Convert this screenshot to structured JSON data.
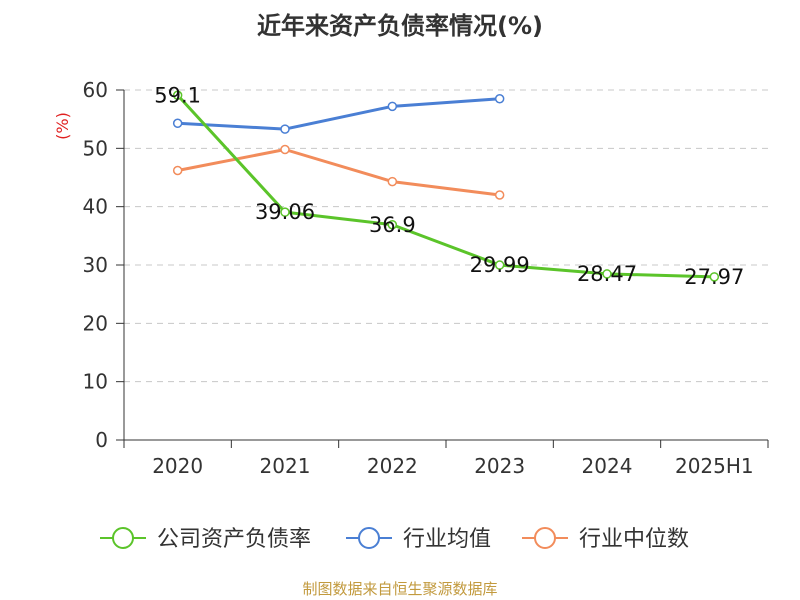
{
  "title": "近年来资产负债率情况(%)",
  "footer": "制图数据来自恒生聚源数据库",
  "chart_data": {
    "type": "line",
    "categories": [
      "2020",
      "2021",
      "2022",
      "2023",
      "2024",
      "2025H1"
    ],
    "ylabel": "(%)",
    "ylim": [
      0,
      60
    ],
    "yticks": [
      0,
      10,
      20,
      30,
      40,
      50,
      60
    ],
    "grid": true,
    "legend_position": "bottom",
    "series": [
      {
        "name": "公司资产负债率",
        "color": "#5bc42a",
        "values": [
          59.1,
          39.06,
          36.9,
          29.99,
          28.47,
          27.97
        ],
        "labels": [
          "59.1",
          "39.06",
          "36.9",
          "29.99",
          "28.47",
          "27.97"
        ]
      },
      {
        "name": "行业均值",
        "color": "#4a7fd4",
        "values": [
          54.3,
          53.3,
          57.2,
          58.5,
          null,
          null
        ]
      },
      {
        "name": "行业中位数",
        "color": "#f28c5b",
        "values": [
          46.2,
          49.8,
          44.3,
          42.0,
          null,
          null
        ]
      }
    ]
  }
}
